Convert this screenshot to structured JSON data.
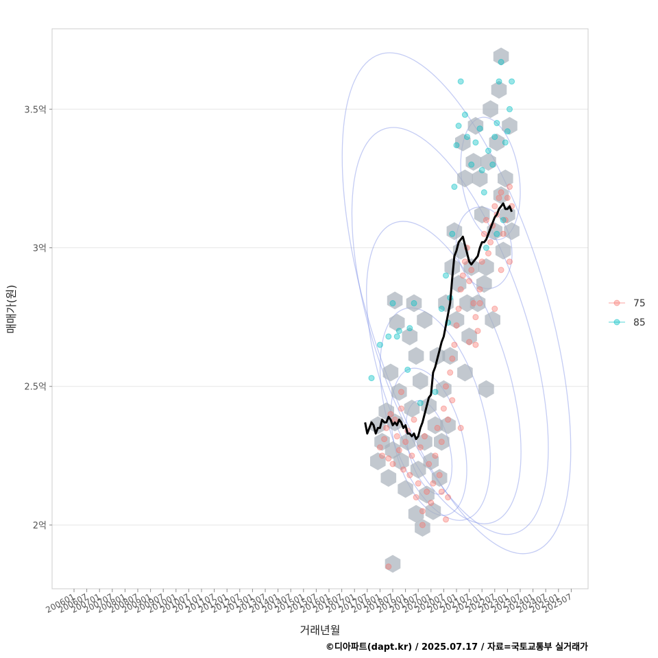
{
  "chart_data": {
    "type": "scatter",
    "title": "",
    "xlabel": "거래년월",
    "ylabel": "매매가(원)",
    "caption": "©디아파트(dapt.kr) / 2025.07.17 / 자료=국토교통부 실거래가",
    "x_ticks": [
      "200601",
      "200607",
      "200701",
      "200707",
      "200801",
      "200807",
      "200901",
      "200907",
      "201001",
      "201007",
      "201101",
      "201107",
      "201201",
      "201207",
      "201301",
      "201307",
      "201401",
      "201407",
      "201501",
      "201507",
      "201601",
      "201607",
      "201701",
      "201707",
      "201801",
      "201807",
      "201901",
      "201907",
      "202001",
      "202007",
      "202101",
      "202107",
      "202201",
      "202207",
      "202301",
      "202307",
      "202401",
      "202407",
      "202501",
      "202507"
    ],
    "xlim": [
      "200507",
      "202601"
    ],
    "y_ticks": [
      {
        "value": 2.0,
        "label": "2억"
      },
      {
        "value": 2.5,
        "label": "2.5억"
      },
      {
        "value": 3.0,
        "label": "3억"
      },
      {
        "value": 3.5,
        "label": "3.5억"
      }
    ],
    "ylim": [
      1.77,
      3.79
    ],
    "y_unit": "억",
    "grid": true,
    "legend_position": "right",
    "colors": {
      "75": "#f8766d",
      "85": "#00bfc4",
      "trend": "#000000",
      "hex": "#a8b0ba",
      "contour": "#7d8fe6",
      "grid": "#e6e6e6",
      "panel_border": "#cccccc"
    },
    "legend": [
      {
        "name": "75",
        "color": "#f8766d"
      },
      {
        "name": "85",
        "color": "#00bfc4"
      }
    ],
    "trend_line": [
      [
        "201706",
        2.37
      ],
      [
        "201707",
        2.33
      ],
      [
        "201708",
        2.35
      ],
      [
        "201709",
        2.37
      ],
      [
        "201710",
        2.36
      ],
      [
        "201711",
        2.33
      ],
      [
        "201712",
        2.35
      ],
      [
        "201801",
        2.35
      ],
      [
        "201802",
        2.38
      ],
      [
        "201803",
        2.37
      ],
      [
        "201804",
        2.37
      ],
      [
        "201805",
        2.39
      ],
      [
        "201806",
        2.38
      ],
      [
        "201807",
        2.36
      ],
      [
        "201808",
        2.37
      ],
      [
        "201809",
        2.36
      ],
      [
        "201810",
        2.38
      ],
      [
        "201811",
        2.37
      ],
      [
        "201812",
        2.35
      ],
      [
        "201901",
        2.36
      ],
      [
        "201902",
        2.33
      ],
      [
        "201903",
        2.33
      ],
      [
        "201904",
        2.32
      ],
      [
        "201905",
        2.33
      ],
      [
        "201906",
        2.31
      ],
      [
        "201907",
        2.32
      ],
      [
        "201908",
        2.35
      ],
      [
        "201909",
        2.37
      ],
      [
        "201910",
        2.4
      ],
      [
        "201911",
        2.43
      ],
      [
        "201912",
        2.46
      ],
      [
        "202001",
        2.47
      ],
      [
        "202002",
        2.55
      ],
      [
        "202003",
        2.57
      ],
      [
        "202004",
        2.6
      ],
      [
        "202005",
        2.63
      ],
      [
        "202006",
        2.66
      ],
      [
        "202007",
        2.68
      ],
      [
        "202008",
        2.72
      ],
      [
        "202009",
        2.76
      ],
      [
        "202010",
        2.8
      ],
      [
        "202011",
        2.89
      ],
      [
        "202012",
        2.97
      ],
      [
        "202101",
        2.99
      ],
      [
        "202102",
        3.02
      ],
      [
        "202103",
        3.03
      ],
      [
        "202104",
        3.04
      ],
      [
        "202105",
        3.01
      ],
      [
        "202106",
        2.98
      ],
      [
        "202107",
        2.95
      ],
      [
        "202108",
        2.94
      ],
      [
        "202109",
        2.95
      ],
      [
        "202110",
        2.96
      ],
      [
        "202111",
        2.97
      ],
      [
        "202112",
        3.0
      ],
      [
        "202201",
        3.02
      ],
      [
        "202202",
        3.02
      ],
      [
        "202203",
        3.03
      ],
      [
        "202204",
        3.05
      ],
      [
        "202205",
        3.07
      ],
      [
        "202206",
        3.09
      ],
      [
        "202207",
        3.11
      ],
      [
        "202208",
        3.12
      ],
      [
        "202209",
        3.14
      ],
      [
        "202210",
        3.15
      ],
      [
        "202211",
        3.16
      ],
      [
        "202212",
        3.14
      ],
      [
        "202301",
        3.14
      ],
      [
        "202302",
        3.15
      ],
      [
        "202303",
        3.13
      ]
    ],
    "series": [
      {
        "name": "75",
        "points": [
          [
            "201801",
            2.28
          ],
          [
            "201802",
            2.25
          ],
          [
            "201803",
            2.31
          ],
          [
            "201804",
            2.35
          ],
          [
            "201805",
            2.24
          ],
          [
            "201806",
            2.4
          ],
          [
            "201807",
            2.22
          ],
          [
            "201808",
            2.38
          ],
          [
            "201809",
            2.32
          ],
          [
            "201810",
            2.27
          ],
          [
            "201811",
            2.42
          ],
          [
            "201812",
            2.2
          ],
          [
            "201901",
            2.3
          ],
          [
            "201902",
            2.34
          ],
          [
            "201903",
            2.18
          ],
          [
            "201904",
            2.25
          ],
          [
            "201905",
            2.38
          ],
          [
            "201906",
            2.1
          ],
          [
            "201907",
            2.15
          ],
          [
            "201908",
            2.28
          ],
          [
            "201909",
            2.05
          ],
          [
            "201910",
            2.32
          ],
          [
            "201911",
            2.12
          ],
          [
            "201912",
            2.22
          ],
          [
            "202001",
            2.08
          ],
          [
            "202002",
            2.15
          ],
          [
            "202003",
            2.25
          ],
          [
            "202004",
            2.35
          ],
          [
            "202005",
            2.18
          ],
          [
            "202006",
            2.3
          ],
          [
            "202007",
            2.42
          ],
          [
            "202008",
            2.5
          ],
          [
            "202009",
            2.38
          ],
          [
            "202010",
            2.55
          ],
          [
            "202011",
            2.6
          ],
          [
            "202012",
            2.65
          ],
          [
            "202101",
            2.72
          ],
          [
            "202102",
            2.78
          ],
          [
            "202103",
            2.85
          ],
          [
            "202104",
            2.9
          ],
          [
            "202105",
            2.95
          ],
          [
            "202106",
            3.0
          ],
          [
            "202107",
            2.88
          ],
          [
            "202108",
            2.92
          ],
          [
            "202109",
            2.8
          ],
          [
            "202110",
            2.75
          ],
          [
            "202111",
            2.7
          ],
          [
            "202112",
            2.85
          ],
          [
            "202201",
            2.95
          ],
          [
            "202202",
            3.05
          ],
          [
            "202203",
            3.1
          ],
          [
            "202204",
            2.98
          ],
          [
            "202205",
            3.02
          ],
          [
            "202206",
            3.08
          ],
          [
            "202207",
            3.15
          ],
          [
            "202208",
            3.12
          ],
          [
            "202209",
            3.18
          ],
          [
            "202210",
            3.2
          ],
          [
            "202211",
            3.05
          ],
          [
            "202212",
            3.1
          ],
          [
            "202301",
            3.18
          ],
          [
            "202302",
            3.22
          ],
          [
            "202303",
            3.15
          ],
          [
            "201805",
            1.85
          ],
          [
            "201811",
            2.48
          ],
          [
            "202009",
            2.1
          ],
          [
            "202103",
            2.35
          ],
          [
            "202107",
            2.66
          ],
          [
            "202110",
            2.65
          ],
          [
            "202112",
            2.8
          ],
          [
            "202207",
            2.78
          ],
          [
            "202210",
            2.92
          ],
          [
            "202302",
            2.95
          ],
          [
            "202008",
            2.02
          ],
          [
            "202006",
            2.12
          ],
          [
            "201909",
            2.0
          ],
          [
            "202011",
            2.45
          ]
        ]
      },
      {
        "name": "85",
        "points": [
          [
            "201709",
            2.53
          ],
          [
            "201801",
            2.65
          ],
          [
            "201805",
            2.68
          ],
          [
            "201807",
            2.8
          ],
          [
            "201809",
            2.68
          ],
          [
            "201810",
            2.7
          ],
          [
            "201902",
            2.56
          ],
          [
            "201903",
            2.71
          ],
          [
            "201905",
            2.8
          ],
          [
            "201908",
            2.44
          ],
          [
            "202003",
            2.48
          ],
          [
            "202006",
            2.78
          ],
          [
            "202008",
            2.9
          ],
          [
            "202009",
            2.73
          ],
          [
            "202010",
            2.82
          ],
          [
            "202011",
            3.05
          ],
          [
            "202012",
            3.22
          ],
          [
            "202101",
            3.37
          ],
          [
            "202102",
            3.44
          ],
          [
            "202103",
            3.6
          ],
          [
            "202105",
            3.48
          ],
          [
            "202106",
            3.4
          ],
          [
            "202108",
            3.3
          ],
          [
            "202110",
            3.38
          ],
          [
            "202112",
            3.43
          ],
          [
            "202201",
            3.28
          ],
          [
            "202202",
            3.2
          ],
          [
            "202204",
            3.35
          ],
          [
            "202206",
            3.3
          ],
          [
            "202207",
            3.4
          ],
          [
            "202208",
            3.45
          ],
          [
            "202209",
            3.6
          ],
          [
            "202210",
            3.67
          ],
          [
            "202212",
            3.38
          ],
          [
            "202301",
            3.42
          ],
          [
            "202302",
            3.5
          ],
          [
            "202303",
            3.6
          ],
          [
            "202208",
            3.05
          ],
          [
            "202211",
            3.1
          ],
          [
            "202203",
            3.0
          ]
        ]
      }
    ],
    "hexbins": [
      [
        "201712",
        2.36
      ],
      [
        "201712",
        2.23
      ],
      [
        "201802",
        2.3
      ],
      [
        "201804",
        2.41
      ],
      [
        "201805",
        2.17
      ],
      [
        "201806",
        2.55
      ],
      [
        "201807",
        2.27
      ],
      [
        "201808",
        2.37
      ],
      [
        "201808",
        2.81
      ],
      [
        "201809",
        2.73
      ],
      [
        "201810",
        2.48
      ],
      [
        "201811",
        2.23
      ],
      [
        "201901",
        2.13
      ],
      [
        "201902",
        2.3
      ],
      [
        "201903",
        2.68
      ],
      [
        "201904",
        2.42
      ],
      [
        "201905",
        2.8
      ],
      [
        "201906",
        2.04
      ],
      [
        "201907",
        2.2
      ],
      [
        "201908",
        2.52
      ],
      [
        "201909",
        1.99
      ],
      [
        "201910",
        2.3
      ],
      [
        "201911",
        2.11
      ],
      [
        "201912",
        2.43
      ],
      [
        "202001",
        2.23
      ],
      [
        "202002",
        2.05
      ],
      [
        "202003",
        2.36
      ],
      [
        "202004",
        2.61
      ],
      [
        "202005",
        2.17
      ],
      [
        "202006",
        2.3
      ],
      [
        "202007",
        2.49
      ],
      [
        "202008",
        2.8
      ],
      [
        "202009",
        2.36
      ],
      [
        "202010",
        2.61
      ],
      [
        "202011",
        2.93
      ],
      [
        "202012",
        3.06
      ],
      [
        "202101",
        2.74
      ],
      [
        "202102",
        2.87
      ],
      [
        "202103",
        2.99
      ],
      [
        "202104",
        3.38
      ],
      [
        "202105",
        3.25
      ],
      [
        "202106",
        2.8
      ],
      [
        "202107",
        2.68
      ],
      [
        "202108",
        2.93
      ],
      [
        "202109",
        3.31
      ],
      [
        "202110",
        3.44
      ],
      [
        "202111",
        2.8
      ],
      [
        "202112",
        3.25
      ],
      [
        "202201",
        3.12
      ],
      [
        "202202",
        2.87
      ],
      [
        "202203",
        2.93
      ],
      [
        "202204",
        3.31
      ],
      [
        "202205",
        3.5
      ],
      [
        "202206",
        2.74
      ],
      [
        "202207",
        3.06
      ],
      [
        "202208",
        3.38
      ],
      [
        "202209",
        3.57
      ],
      [
        "202210",
        3.19
      ],
      [
        "202211",
        2.99
      ],
      [
        "202212",
        3.25
      ],
      [
        "202301",
        3.12
      ],
      [
        "202302",
        3.44
      ],
      [
        "202303",
        3.06
      ],
      [
        "202210",
        3.69
      ],
      [
        "201807",
        1.86
      ],
      [
        "202203",
        2.49
      ],
      [
        "201906",
        2.61
      ],
      [
        "201910",
        2.74
      ],
      [
        "202105",
        2.55
      ]
    ]
  }
}
